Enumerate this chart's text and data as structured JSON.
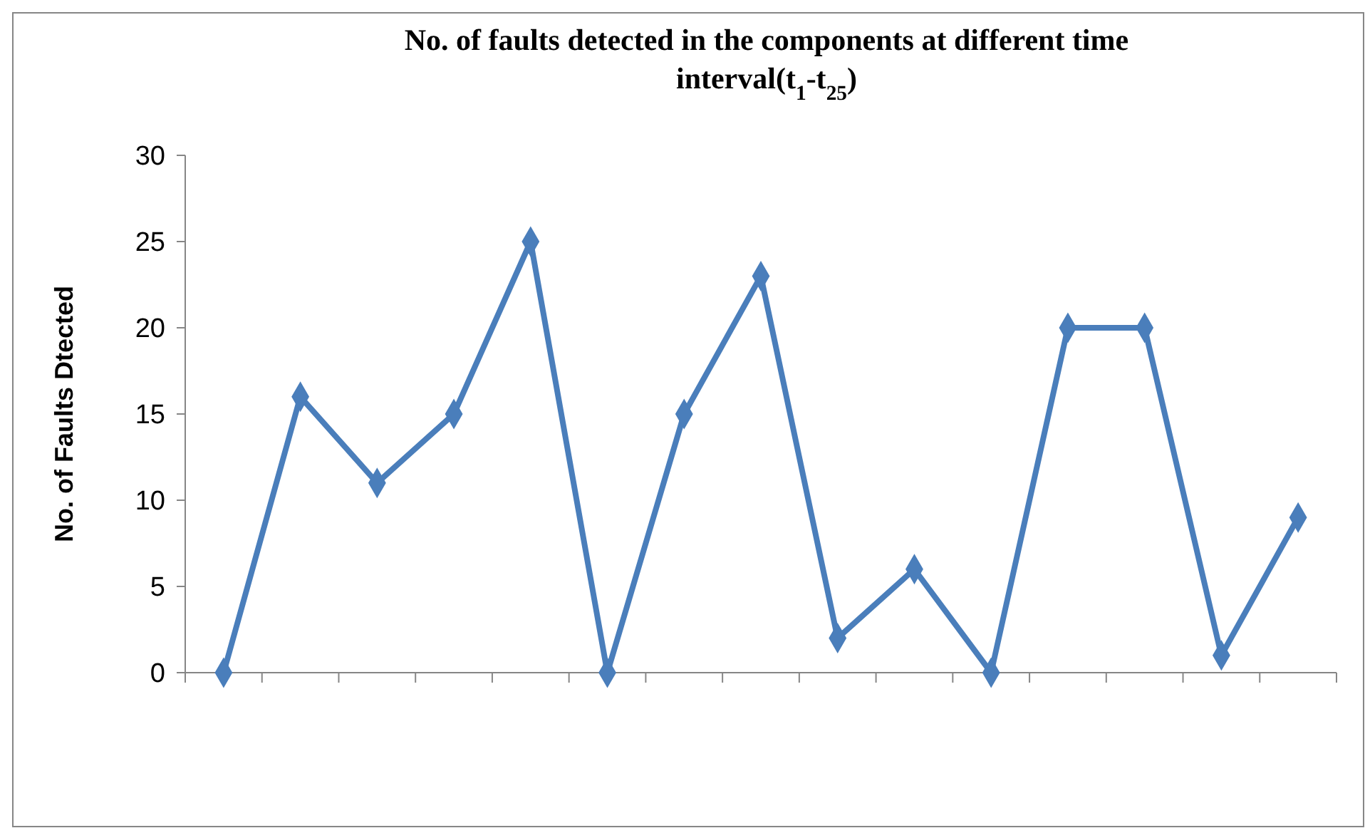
{
  "chart_data": {
    "type": "line",
    "title": "No. of faults detected in the components  at different time interval(t$_{1}$-t$_{25}$)",
    "ylabel": "No.  of Faults Dtected",
    "categories": [
      null,
      null,
      null,
      null,
      null,
      null,
      null,
      null,
      null,
      null,
      null,
      null,
      null,
      null,
      null
    ],
    "series": [
      {
        "color": "#4a7ebb",
        "values": [
          0,
          16,
          11,
          15,
          25,
          0,
          15,
          23,
          2,
          6,
          0,
          20,
          20,
          1,
          9
        ]
      }
    ],
    "ylim": [
      0,
      30
    ],
    "yticks": [
      0,
      5,
      10,
      15,
      20,
      25,
      30
    ],
    "grid": false,
    "marker": "diamond",
    "line_style": "solid"
  }
}
